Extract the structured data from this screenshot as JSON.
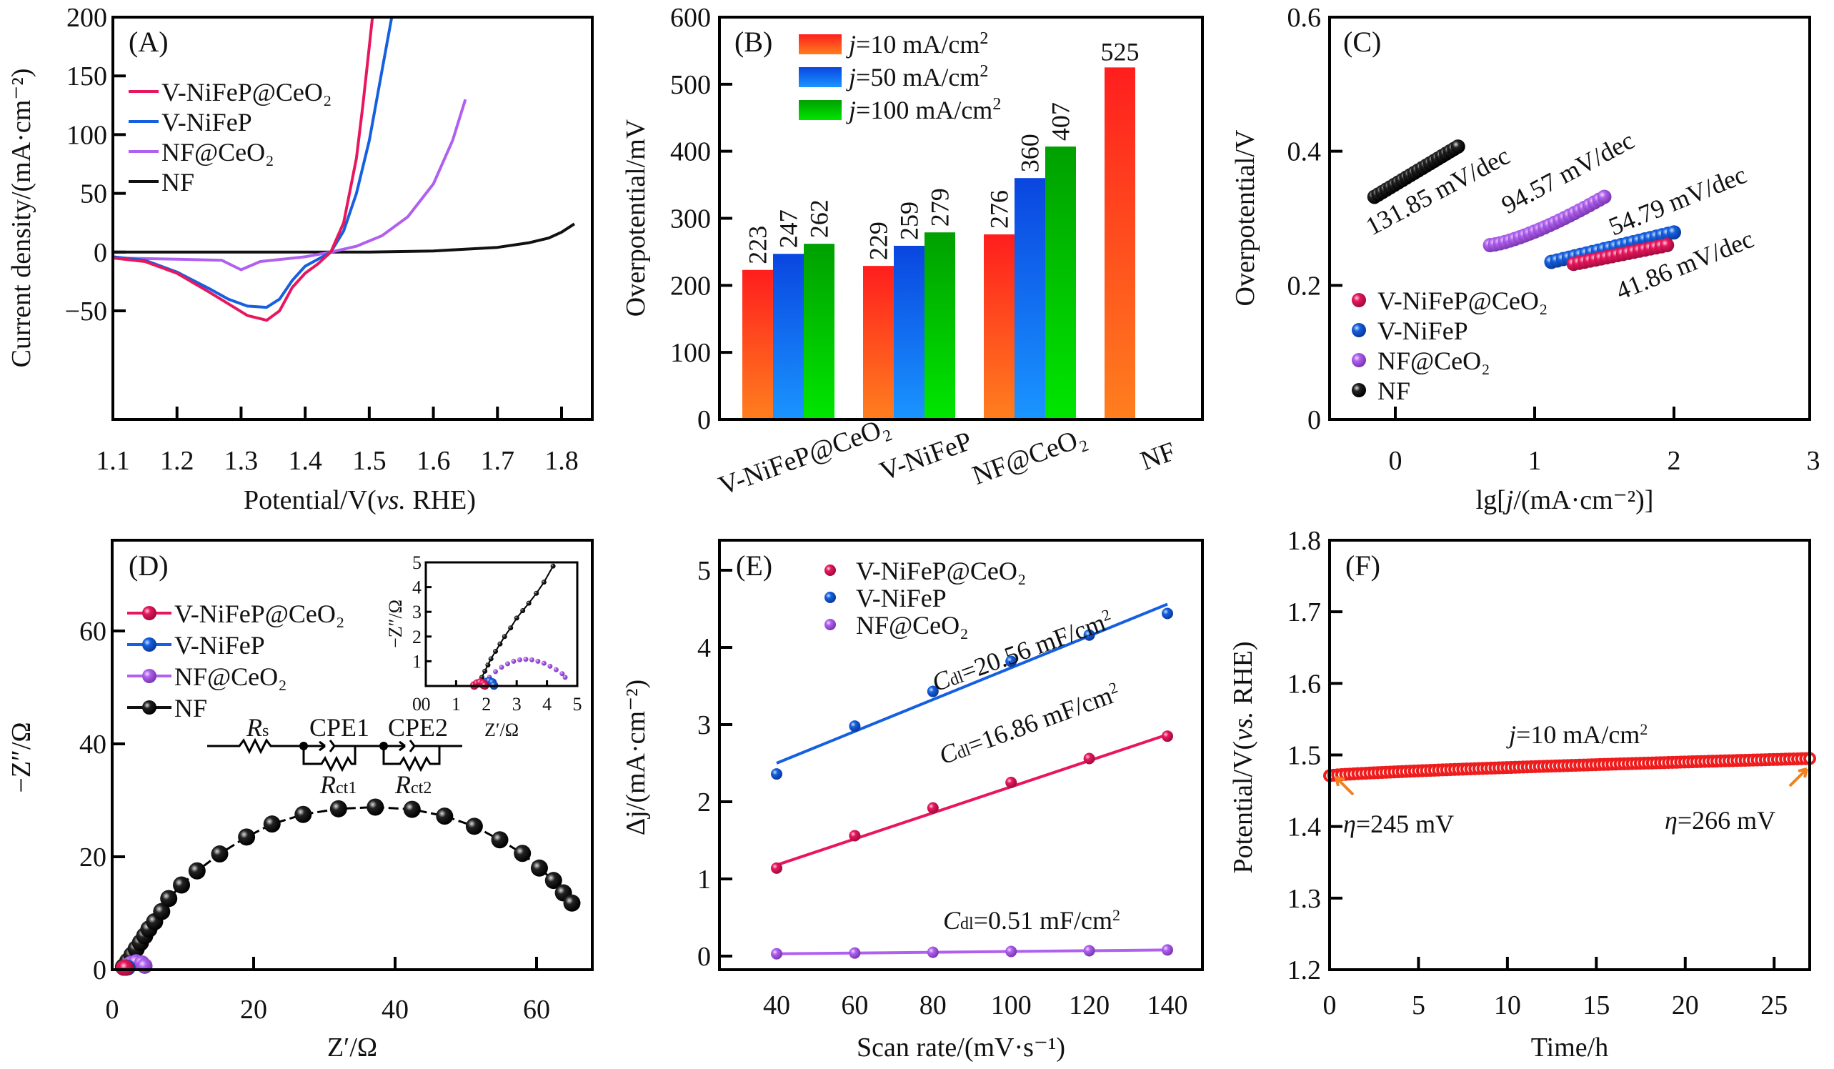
{
  "figure": {
    "panels": [
      "A",
      "B",
      "C",
      "D",
      "E",
      "F"
    ]
  },
  "colors": {
    "V-NiFeP@CeO2": "#e8175d",
    "V-NiFeP": "#1560e0",
    "NF@CeO2": "#b060f0",
    "NF": "#111111",
    "bar10_top": "#ff1e1e",
    "bar10_bottom": "#ff7f1e",
    "bar50_top": "#0a46e0",
    "bar50_bottom": "#1a95ff",
    "bar100_top": "#00a000",
    "bar100_bottom": "#00e600",
    "stability": "#ee1c1c",
    "arrow": "#f08020"
  },
  "chart_data": [
    {
      "id": "A",
      "type": "line",
      "panel_label": "(A)",
      "title": "",
      "xlabel": "Potential/V(vs. RHE)",
      "xlabel_parts": [
        "Potential/V(",
        "vs.",
        " RHE)"
      ],
      "ylabel": "Current density/(mA·cm⁻²)",
      "xlim": [
        1.1,
        1.85
      ],
      "ylim": [
        -85,
        200
      ],
      "xticks": [
        1.1,
        1.2,
        1.3,
        1.4,
        1.5,
        1.6,
        1.7,
        1.8
      ],
      "xtick_labels": [
        "1.1",
        "1.2",
        "1.3",
        "1.4",
        "1.5",
        "1.6",
        "1.7",
        "1.8"
      ],
      "yticks": [
        -50,
        0,
        50,
        100,
        150,
        200
      ],
      "ytick_labels": [
        "−50",
        "0",
        "50",
        "100",
        "150",
        "200"
      ],
      "legend": [
        "V-NiFeP@CeO2",
        "V-NiFeP",
        "NF@CeO2",
        "NF"
      ],
      "legend_labels": [
        "V-NiFeP@CeO₂",
        "V-NiFeP",
        "NF@CeO₂",
        "NF"
      ],
      "legend_position": "upper-left",
      "series": [
        {
          "name": "V-NiFeP@CeO2",
          "x": [
            1.1,
            1.15,
            1.2,
            1.25,
            1.28,
            1.31,
            1.34,
            1.36,
            1.38,
            1.4,
            1.42,
            1.44,
            1.46,
            1.48,
            1.49,
            1.5,
            1.505
          ],
          "y": [
            -5,
            -8,
            -18,
            -34,
            -44,
            -54,
            -58,
            -50,
            -30,
            -18,
            -10,
            0,
            25,
            80,
            125,
            175,
            200
          ]
        },
        {
          "name": "V-NiFeP",
          "x": [
            1.1,
            1.15,
            1.2,
            1.25,
            1.28,
            1.31,
            1.34,
            1.36,
            1.38,
            1.4,
            1.42,
            1.44,
            1.46,
            1.48,
            1.5,
            1.52,
            1.535
          ],
          "y": [
            -4,
            -7,
            -17,
            -31,
            -40,
            -46,
            -47,
            -40,
            -24,
            -12,
            -6,
            0,
            18,
            50,
            95,
            155,
            200
          ]
        },
        {
          "name": "NF@CeO2",
          "x": [
            1.1,
            1.2,
            1.27,
            1.3,
            1.33,
            1.4,
            1.44,
            1.48,
            1.52,
            1.56,
            1.6,
            1.63,
            1.65
          ],
          "y": [
            -5,
            -6,
            -7,
            -15,
            -8,
            -4,
            0,
            5,
            14,
            30,
            58,
            95,
            130
          ]
        },
        {
          "name": "NF",
          "x": [
            1.1,
            1.3,
            1.5,
            1.6,
            1.7,
            1.75,
            1.78,
            1.8,
            1.82
          ],
          "y": [
            0,
            0,
            0,
            1,
            4,
            8,
            12,
            17,
            24
          ]
        }
      ]
    },
    {
      "id": "B",
      "type": "bar",
      "panel_label": "(B)",
      "title": "",
      "xlabel": "",
      "ylabel": "Overpotential/mV",
      "ylim": [
        0,
        600
      ],
      "yticks": [
        0,
        100,
        200,
        300,
        400,
        500,
        600
      ],
      "ytick_labels": [
        "0",
        "100",
        "200",
        "300",
        "400",
        "500",
        "600"
      ],
      "categories": [
        "V-NiFeP@CeO₂",
        "V-NiFeP",
        "NF@CeO₂",
        "NF"
      ],
      "legend_position": "top-left",
      "series": [
        {
          "name": "j=10 mA/cm²",
          "label_prefix": "j",
          "label_rest": "=10 mA/cm",
          "values": [
            223,
            229,
            276,
            525
          ]
        },
        {
          "name": "j=50 mA/cm²",
          "label_prefix": "j",
          "label_rest": "=50 mA/cm",
          "values": [
            247,
            259,
            360,
            null
          ]
        },
        {
          "name": "j=100 mA/cm²",
          "label_prefix": "j",
          "label_rest": "=100 mA/cm",
          "values": [
            262,
            279,
            407,
            null
          ]
        }
      ],
      "data_labels": [
        [
          "223",
          "247",
          "262"
        ],
        [
          "229",
          "259",
          "279"
        ],
        [
          "276",
          "360",
          "407"
        ],
        [
          "525"
        ]
      ]
    },
    {
      "id": "C",
      "type": "scatter",
      "panel_label": "(C)",
      "title": "",
      "xlabel": "lg[j/(mA·cm⁻²)]",
      "xlabel_parts": [
        "lg[",
        "j",
        "/(mA·cm⁻²)]"
      ],
      "ylabel": "Overpotential/V",
      "xlim": [
        -0.47,
        3.0
      ],
      "ylim": [
        0,
        0.6
      ],
      "xticks": [
        0,
        1,
        2,
        3
      ],
      "xtick_labels": [
        "0",
        "1",
        "2",
        "3"
      ],
      "yticks": [
        0,
        0.2,
        0.4,
        0.6
      ],
      "ytick_labels": [
        "0",
        "0.2",
        "0.4",
        "0.6"
      ],
      "legend": [
        "V-NiFeP@CeO2",
        "V-NiFeP",
        "NF@CeO2",
        "NF"
      ],
      "legend_labels": [
        "V-NiFeP@CeO₂",
        "V-NiFeP",
        "NF@CeO₂",
        "NF"
      ],
      "legend_position": "lower-left",
      "series": [
        {
          "name": "V-NiFeP@CeO2",
          "x_start": 1.28,
          "x_end": 1.95,
          "y_start": 0.232,
          "y_end": 0.26,
          "n": 18,
          "tafel": "41.86 mV/dec"
        },
        {
          "name": "V-NiFeP",
          "x_start": 1.12,
          "x_end": 2.0,
          "y_start": 0.235,
          "y_end": 0.279,
          "n": 22,
          "tafel": "54.79 mV/dec"
        },
        {
          "name": "NF@CeO2",
          "x_start": 0.68,
          "x_end": 1.5,
          "y_start": 0.26,
          "y_end": 0.332,
          "n": 24,
          "tafel": "94.57 mV/dec"
        },
        {
          "name": "NF",
          "x_start": -0.15,
          "x_end": 0.45,
          "y_start": 0.332,
          "y_end": 0.407,
          "n": 22,
          "tafel": "131.85 mV/dec"
        }
      ],
      "annotations": [
        "131.85 mV/dec",
        "94.57 mV/dec",
        "54.79 mV/dec",
        "41.86 mV/dec"
      ]
    },
    {
      "id": "D",
      "type": "scatter",
      "panel_label": "(D)",
      "title": "",
      "xlabel": "Z′/Ω",
      "ylabel": "−Z″/Ω",
      "xlim": [
        0,
        69
      ],
      "ylim": [
        0,
        75
      ],
      "xticks": [
        0,
        20,
        40,
        60
      ],
      "xtick_labels": [
        "0",
        "20",
        "40",
        "60"
      ],
      "yticks": [
        0,
        20,
        40,
        60
      ],
      "ytick_labels": [
        "0",
        "20",
        "40",
        "60"
      ],
      "legend": [
        "V-NiFeP@CeO2",
        "V-NiFeP",
        "NF@CeO2",
        "NF"
      ],
      "legend_labels": [
        "V-NiFeP@CeO₂",
        "V-NiFeP",
        "NF@CeO₂",
        "NF"
      ],
      "legend_position": "upper-left",
      "series": [
        {
          "name": "NF",
          "x": [
            1.6,
            2.2,
            2.8,
            3.4,
            4.0,
            4.6,
            5.2,
            6.0,
            7.0,
            8.0,
            9.8,
            12.0,
            15.2,
            19.0,
            22.6,
            27.0,
            32.0,
            37.2,
            42.4,
            47.0,
            51.2,
            54.8,
            58.0,
            60.4,
            62.4,
            63.8,
            65.0
          ],
          "y": [
            0.5,
            1.5,
            2.6,
            3.7,
            4.8,
            6.0,
            7.2,
            8.5,
            10.3,
            12.6,
            15.0,
            17.5,
            20.5,
            23.5,
            25.8,
            27.5,
            28.5,
            28.8,
            28.4,
            27.2,
            25.4,
            23.0,
            20.6,
            18.0,
            15.8,
            13.6,
            11.8
          ]
        },
        {
          "name": "NF@CeO2",
          "x": [
            2.0,
            2.6,
            3.4,
            4.2,
            4.6
          ],
          "y": [
            0.2,
            0.8,
            1.1,
            0.9,
            0.4
          ]
        },
        {
          "name": "V-NiFeP",
          "x": [
            1.8,
            2.0,
            2.2
          ],
          "y": [
            0.1,
            0.2,
            0.1
          ]
        },
        {
          "name": "V-NiFeP@CeO2",
          "x": [
            1.6,
            1.8,
            1.95
          ],
          "y": [
            0.05,
            0.15,
            0.05
          ]
        }
      ],
      "inset": {
        "xlim": [
          0,
          5
        ],
        "ylim": [
          0,
          5
        ],
        "xticks": [
          0,
          1,
          2,
          3,
          4,
          5
        ],
        "xtick_labels": [
          "0",
          "1",
          "2",
          "3",
          "4",
          "5"
        ],
        "yticks": [
          1,
          2,
          3,
          4,
          5
        ],
        "ytick_labels": [
          "1",
          "2",
          "3",
          "4",
          "5"
        ],
        "xlabel": "Z′/Ω",
        "ylabel": "−Z″/Ω",
        "series": [
          {
            "name": "NF",
            "x": [
              1.75,
              1.85,
              1.95,
              2.05,
              2.15,
              2.3,
              2.45,
              2.6,
              2.8,
              3.0,
              3.2,
              3.4,
              3.65,
              3.9,
              4.2
            ],
            "y": [
              0.1,
              0.35,
              0.6,
              0.85,
              1.1,
              1.4,
              1.7,
              2.0,
              2.35,
              2.75,
              3.05,
              3.35,
              3.75,
              4.2,
              4.85
            ]
          },
          {
            "name": "NF@CeO2",
            "x": [
              1.9,
              2.1,
              2.3,
              2.5,
              2.7,
              2.9,
              3.1,
              3.3,
              3.5,
              3.7,
              3.9,
              4.1,
              4.3,
              4.5,
              4.6
            ],
            "y": [
              0.1,
              0.35,
              0.58,
              0.76,
              0.9,
              1.0,
              1.06,
              1.08,
              1.06,
              1.0,
              0.92,
              0.8,
              0.66,
              0.5,
              0.35
            ]
          },
          {
            "name": "V-NiFeP",
            "x": [
              1.9,
              2.0,
              2.1,
              2.2,
              2.25
            ],
            "y": [
              0.05,
              0.16,
              0.2,
              0.14,
              0.02
            ]
          },
          {
            "name": "V-NiFeP@CeO2",
            "x": [
              1.6,
              1.7,
              1.8,
              1.9,
              1.95
            ],
            "y": [
              0.02,
              0.1,
              0.14,
              0.1,
              0.02
            ]
          }
        ]
      },
      "circuit": {
        "labels": [
          "Rs",
          "CPE1",
          "CPE2",
          "Rct1",
          "Rct2"
        ],
        "rs_main": "R",
        "rs_sub": "s",
        "rct1_main": "R",
        "rct1_sub": "ct1",
        "rct2_main": "R",
        "rct2_sub": "ct2",
        "cpe1": "CPE1",
        "cpe2": "CPE2"
      }
    },
    {
      "id": "E",
      "type": "scatter",
      "panel_label": "(E)",
      "title": "",
      "xlabel": "Scan rate/(mV·s⁻¹)",
      "ylabel": "Δj/(mA·cm⁻²)",
      "xlim": [
        26,
        152
      ],
      "ylim": [
        -0.19,
        5.4
      ],
      "xticks": [
        40,
        60,
        80,
        100,
        120,
        140
      ],
      "xtick_labels": [
        "40",
        "60",
        "80",
        "100",
        "120",
        "140"
      ],
      "yticks": [
        0,
        1,
        2,
        3,
        4,
        5
      ],
      "ytick_labels": [
        "0",
        "1",
        "2",
        "3",
        "4",
        "5"
      ],
      "legend": [
        "V-NiFeP@CeO2",
        "V-NiFeP",
        "NF@CeO2"
      ],
      "legend_labels": [
        "V-NiFeP@CeO₂",
        "V-NiFeP",
        "NF@CeO₂"
      ],
      "legend_position": "top",
      "x": [
        40,
        60,
        80,
        100,
        120,
        140
      ],
      "series": [
        {
          "name": "V-NiFeP@CeO2",
          "values": [
            1.14,
            1.56,
            1.92,
            2.25,
            2.56,
            2.85
          ],
          "fit": [
            1.18,
            2.87
          ],
          "cdl": "=16.86 mF/cm"
        },
        {
          "name": "V-NiFeP",
          "values": [
            2.36,
            2.98,
            3.43,
            3.82,
            4.16,
            4.44
          ],
          "fit": [
            2.5,
            4.56
          ],
          "cdl": "=20.56 mF/cm"
        },
        {
          "name": "NF@CeO2",
          "values": [
            0.03,
            0.04,
            0.05,
            0.06,
            0.07,
            0.08
          ],
          "fit": [
            0.03,
            0.08
          ],
          "cdl": "=0.51 mF/cm"
        }
      ],
      "annotations": [
        "Cdl=20.56 mF/cm²",
        "Cdl=16.86 mF/cm²",
        "Cdl=0.51 mF/cm²"
      ]
    },
    {
      "id": "F",
      "type": "scatter",
      "panel_label": "(F)",
      "title": "",
      "xlabel": "Time/h",
      "ylabel": "Potential/V(vs. RHE)",
      "ylabel_parts": [
        "Potential/V(",
        "vs.",
        " RHE)"
      ],
      "xlim": [
        0,
        27
      ],
      "ylim": [
        1.2,
        1.8
      ],
      "xticks": [
        0,
        5,
        10,
        15,
        20,
        25
      ],
      "xtick_labels": [
        "0",
        "5",
        "10",
        "15",
        "20",
        "25"
      ],
      "yticks": [
        1.2,
        1.3,
        1.4,
        1.5,
        1.6,
        1.7,
        1.8
      ],
      "ytick_labels": [
        "1.2",
        "1.3",
        "1.4",
        "1.5",
        "1.6",
        "1.7",
        "1.8"
      ],
      "series": [
        {
          "name": "j=10 mA/cm²",
          "t_start": 0,
          "t_end": 27,
          "v_start": 1.471,
          "v_end": 1.495,
          "n": 120
        }
      ],
      "annotations": {
        "current": {
          "prefix": "j",
          "rest": "=10 mA/cm",
          "sup": "2"
        },
        "start": {
          "symbol": "η",
          "rest": "=245 mV",
          "t": 0.2,
          "v": 1.472
        },
        "end": {
          "symbol": "η",
          "rest": "=266 mV",
          "t": 26.8,
          "v": 1.495
        }
      }
    }
  ]
}
